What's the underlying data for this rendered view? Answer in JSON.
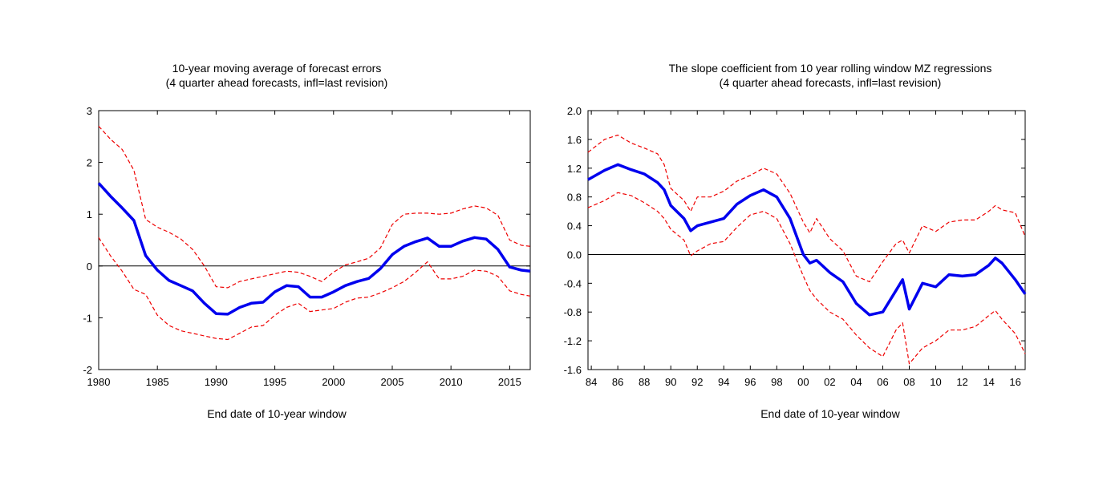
{
  "chart_data": [
    {
      "type": "line",
      "title": "10-year moving average of forecast errors",
      "subtitle": "(4 quarter ahead forecasts, infl=last revision)",
      "xlabel": "End date of 10-year window",
      "ylabel": "",
      "xlim": [
        1980,
        2016.75
      ],
      "ylim": [
        -2,
        3
      ],
      "yticks": [
        "-2",
        "-1",
        "0",
        "1",
        "2",
        "3"
      ],
      "xticks": [
        "1980",
        "1985",
        "1990",
        "1995",
        "2000",
        "2005",
        "2010",
        "2015"
      ],
      "reference_line": 0,
      "colors": {
        "estimate": "#0000ee",
        "band": "#ee0000",
        "reference": "#000000"
      },
      "x": [
        1980,
        1981,
        1982,
        1983,
        1984,
        1985,
        1986,
        1987,
        1988,
        1989,
        1990,
        1991,
        1992,
        1993,
        1994,
        1995,
        1996,
        1997,
        1998,
        1999,
        2000,
        2001,
        2002,
        2003,
        2004,
        2005,
        2006,
        2007,
        2008,
        2009,
        2010,
        2011,
        2012,
        2013,
        2014,
        2015,
        2016,
        2016.75
      ],
      "series": [
        {
          "role": "estimate",
          "style": "solid",
          "values": [
            1.6,
            1.35,
            1.12,
            0.88,
            0.2,
            -0.08,
            -0.28,
            -0.38,
            -0.48,
            -0.72,
            -0.92,
            -0.93,
            -0.8,
            -0.72,
            -0.7,
            -0.5,
            -0.38,
            -0.4,
            -0.6,
            -0.6,
            -0.5,
            -0.38,
            -0.3,
            -0.24,
            -0.05,
            0.22,
            0.38,
            0.47,
            0.54,
            0.38,
            0.38,
            0.48,
            0.55,
            0.52,
            0.32,
            -0.02,
            -0.08,
            -0.1
          ]
        },
        {
          "role": "upper band",
          "style": "dashed",
          "values": [
            2.7,
            2.45,
            2.25,
            1.85,
            0.9,
            0.75,
            0.65,
            0.52,
            0.32,
            0.0,
            -0.4,
            -0.42,
            -0.3,
            -0.25,
            -0.2,
            -0.15,
            -0.1,
            -0.12,
            -0.2,
            -0.3,
            -0.12,
            0.02,
            0.08,
            0.15,
            0.35,
            0.8,
            1.0,
            1.02,
            1.02,
            1.0,
            1.02,
            1.1,
            1.16,
            1.12,
            0.98,
            0.5,
            0.4,
            0.38
          ]
        },
        {
          "role": "lower band",
          "style": "dashed",
          "values": [
            0.55,
            0.2,
            -0.1,
            -0.45,
            -0.55,
            -0.95,
            -1.15,
            -1.25,
            -1.3,
            -1.35,
            -1.4,
            -1.42,
            -1.3,
            -1.18,
            -1.15,
            -0.95,
            -0.8,
            -0.72,
            -0.88,
            -0.85,
            -0.82,
            -0.7,
            -0.62,
            -0.6,
            -0.52,
            -0.42,
            -0.3,
            -0.12,
            0.08,
            -0.25,
            -0.25,
            -0.2,
            -0.08,
            -0.1,
            -0.2,
            -0.48,
            -0.55,
            -0.58
          ]
        }
      ]
    },
    {
      "type": "line",
      "title": "The slope coefficient from 10 year rolling window MZ regressions",
      "subtitle": "(4 quarter ahead forecasts, infl=last revision)",
      "xlabel": "End date of 10-year window",
      "ylabel": "",
      "xlim": [
        1983.75,
        2016.75
      ],
      "ylim": [
        -1.6,
        2.0
      ],
      "yticks": [
        "-1.6",
        "-1.2",
        "-0.8",
        "-0.4",
        "0.0",
        "0.4",
        "0.8",
        "1.2",
        "1.6",
        "2.0"
      ],
      "xticks": [
        "84",
        "86",
        "88",
        "90",
        "92",
        "94",
        "96",
        "98",
        "00",
        "02",
        "04",
        "06",
        "08",
        "10",
        "12",
        "14",
        "16"
      ],
      "reference_line": 0,
      "colors": {
        "estimate": "#0000ee",
        "band": "#ee0000",
        "reference": "#000000"
      },
      "x": [
        1983.75,
        1985,
        1986,
        1987,
        1988,
        1989,
        1989.5,
        1990,
        1991,
        1991.5,
        1992,
        1993,
        1994,
        1995,
        1996,
        1997,
        1998,
        1999,
        2000,
        2000.5,
        2001,
        2002,
        2003,
        2004,
        2005,
        2006,
        2007,
        2007.5,
        2008,
        2009,
        2010,
        2011,
        2012,
        2013,
        2014,
        2014.5,
        2015,
        2016,
        2016.75
      ],
      "series": [
        {
          "role": "estimate",
          "style": "solid",
          "values": [
            1.04,
            1.17,
            1.25,
            1.18,
            1.12,
            1.0,
            0.9,
            0.68,
            0.5,
            0.33,
            0.4,
            0.45,
            0.5,
            0.7,
            0.82,
            0.9,
            0.8,
            0.5,
            0.0,
            -0.12,
            -0.08,
            -0.25,
            -0.38,
            -0.68,
            -0.84,
            -0.8,
            -0.5,
            -0.35,
            -0.76,
            -0.4,
            -0.45,
            -0.28,
            -0.3,
            -0.28,
            -0.15,
            -0.05,
            -0.12,
            -0.35,
            -0.55
          ]
        },
        {
          "role": "upper band",
          "style": "dashed",
          "values": [
            1.42,
            1.6,
            1.66,
            1.55,
            1.48,
            1.4,
            1.25,
            0.92,
            0.75,
            0.6,
            0.8,
            0.8,
            0.88,
            1.02,
            1.1,
            1.2,
            1.12,
            0.85,
            0.45,
            0.3,
            0.5,
            0.22,
            0.05,
            -0.3,
            -0.38,
            -0.1,
            0.15,
            0.2,
            0.02,
            0.4,
            0.32,
            0.45,
            0.48,
            0.48,
            0.6,
            0.68,
            0.62,
            0.58,
            0.25
          ]
        },
        {
          "role": "lower band",
          "style": "dashed",
          "values": [
            0.65,
            0.75,
            0.86,
            0.82,
            0.72,
            0.6,
            0.5,
            0.35,
            0.2,
            -0.02,
            0.05,
            0.15,
            0.18,
            0.38,
            0.55,
            0.6,
            0.5,
            0.15,
            -0.3,
            -0.5,
            -0.62,
            -0.8,
            -0.9,
            -1.12,
            -1.3,
            -1.42,
            -1.05,
            -0.95,
            -1.52,
            -1.3,
            -1.2,
            -1.05,
            -1.05,
            -1.0,
            -0.85,
            -0.78,
            -0.9,
            -1.1,
            -1.38
          ]
        }
      ]
    }
  ]
}
